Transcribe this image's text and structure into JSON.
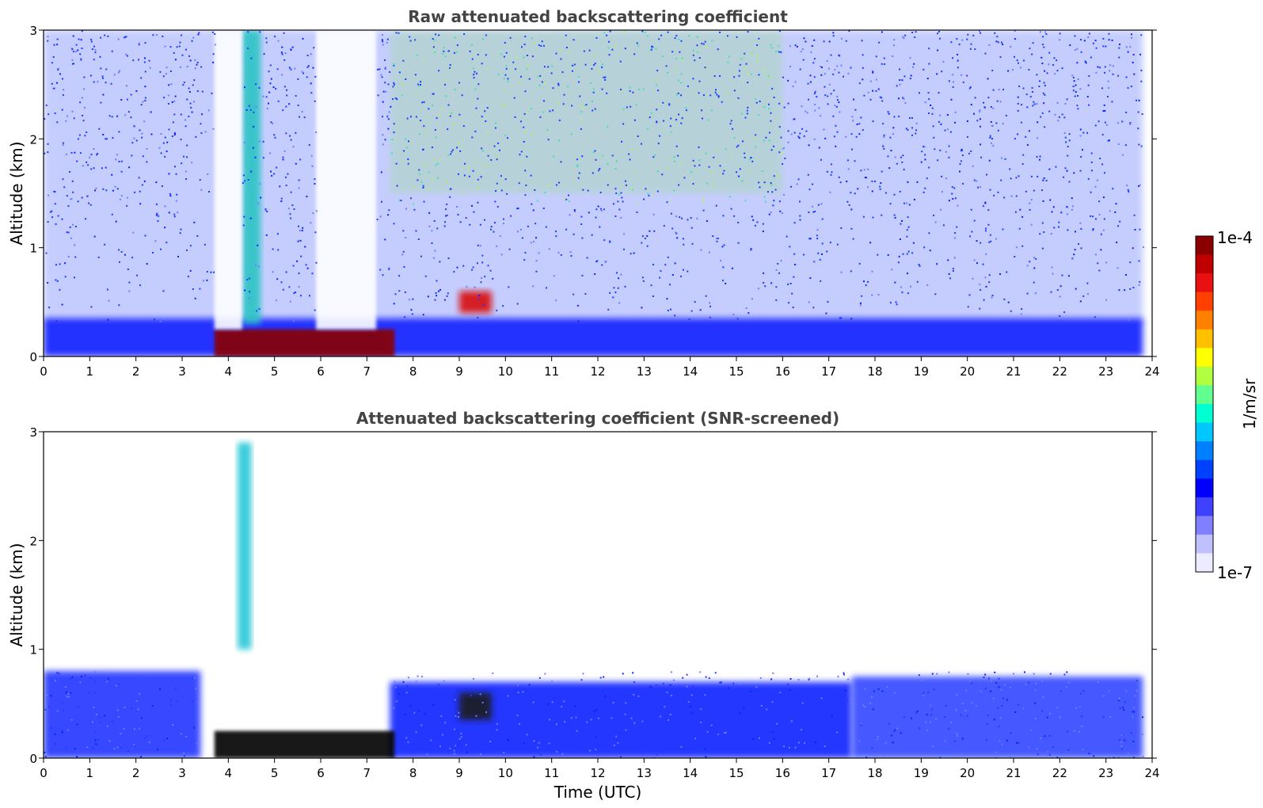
{
  "chart_data": [
    {
      "type": "heatmap",
      "title": "Raw attenuated backscattering coefficient",
      "xlabel": "",
      "ylabel": "Altitude (km)",
      "xlim": [
        0,
        24
      ],
      "ylim": [
        0,
        3
      ],
      "xticks": [
        "0",
        "1",
        "2",
        "3",
        "4",
        "5",
        "6",
        "7",
        "8",
        "9",
        "10",
        "11",
        "12",
        "13",
        "14",
        "15",
        "16",
        "17",
        "18",
        "19",
        "20",
        "21",
        "22",
        "23",
        "24"
      ],
      "yticks": [
        "0",
        "1",
        "2",
        "3"
      ],
      "features": [
        {
          "kind": "noise-field",
          "t": [
            0,
            23.8
          ],
          "z": [
            0.3,
            3.0
          ],
          "color": "#1a3cff"
        },
        {
          "kind": "upper-signal",
          "t": [
            7.5,
            16
          ],
          "z": [
            1.5,
            3.0
          ],
          "color": "#8ee06a"
        },
        {
          "kind": "boundary-layer",
          "t": [
            0,
            23.8
          ],
          "z": [
            0,
            0.35
          ],
          "color": "#0a1cff"
        },
        {
          "kind": "cloud-column",
          "t": [
            4.3,
            4.7
          ],
          "z": [
            0.3,
            3.0
          ],
          "color": "#2cc4c4"
        },
        {
          "kind": "low-cloud",
          "t": [
            3.7,
            7.6
          ],
          "z": [
            0.0,
            0.25
          ],
          "color": "#8b0000"
        },
        {
          "kind": "cloud-patches",
          "t": [
            9.0,
            9.7
          ],
          "z": [
            0.4,
            0.6
          ],
          "color": "#d81010"
        },
        {
          "kind": "no-data-gap",
          "t": [
            3.7,
            4.3
          ],
          "z": [
            0.25,
            3.0
          ],
          "color": "#ffffff"
        },
        {
          "kind": "no-data-gap",
          "t": [
            5.9,
            7.2
          ],
          "z": [
            0.25,
            3.0
          ],
          "color": "#ffffff"
        }
      ]
    },
    {
      "type": "heatmap",
      "title": "Attenuated backscattering coefficient (SNR-screened)",
      "xlabel": "Time (UTC)",
      "ylabel": "Altitude (km)",
      "xlim": [
        0,
        24
      ],
      "ylim": [
        0,
        3
      ],
      "xticks": [
        "0",
        "1",
        "2",
        "3",
        "4",
        "5",
        "6",
        "7",
        "8",
        "9",
        "10",
        "11",
        "12",
        "13",
        "14",
        "15",
        "16",
        "17",
        "18",
        "19",
        "20",
        "21",
        "22",
        "23",
        "24"
      ],
      "yticks": [
        "0",
        "1",
        "2",
        "3"
      ],
      "features": [
        {
          "kind": "aerosol-layer",
          "t": [
            0,
            3.4
          ],
          "z": [
            0,
            0.8
          ],
          "color": "#2436ff"
        },
        {
          "kind": "aerosol-layer",
          "t": [
            7.5,
            17.5
          ],
          "z": [
            0,
            0.7
          ],
          "color": "#0a22ff"
        },
        {
          "kind": "aerosol-layer",
          "t": [
            17.5,
            23.8
          ],
          "z": [
            0,
            0.75
          ],
          "color": "#3346ff"
        },
        {
          "kind": "cloud-column",
          "t": [
            4.2,
            4.5
          ],
          "z": [
            1.0,
            2.9
          ],
          "color": "#28c8d8"
        },
        {
          "kind": "low-cloud",
          "t": [
            3.7,
            7.6
          ],
          "z": [
            0.0,
            0.25
          ],
          "color": "#000000"
        },
        {
          "kind": "cloud-patches",
          "t": [
            9.0,
            9.7
          ],
          "z": [
            0.35,
            0.6
          ],
          "color": "#1a1a1a"
        }
      ]
    }
  ],
  "colorbar": {
    "label": "1/m/sr",
    "max_label": "1e-4",
    "min_label": "1e-7",
    "colors": [
      "#8b0000",
      "#c00000",
      "#e81010",
      "#ff4000",
      "#ff8000",
      "#ffc000",
      "#ffff00",
      "#b0ff40",
      "#60ff90",
      "#00ffd0",
      "#00c8ff",
      "#0080ff",
      "#0040ff",
      "#0000ff",
      "#4040ff",
      "#8080ff",
      "#c0c0ff",
      "#ecebff"
    ]
  }
}
